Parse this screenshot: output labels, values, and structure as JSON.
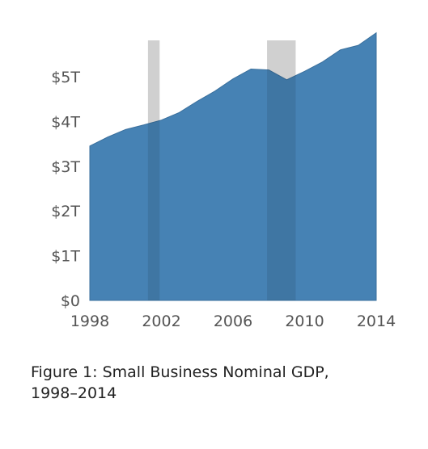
{
  "chart_data": {
    "type": "area",
    "x": [
      1998,
      1999,
      2000,
      2001,
      2002,
      2003,
      2004,
      2005,
      2006,
      2007,
      2008,
      2009,
      2010,
      2011,
      2012,
      2013,
      2014
    ],
    "series": [
      {
        "values": [
          3.45,
          3.65,
          3.82,
          3.92,
          4.03,
          4.2,
          4.45,
          4.68,
          4.95,
          5.17,
          5.15,
          4.93,
          5.12,
          5.33,
          5.6,
          5.7,
          5.98
        ],
        "color": "#4682b4"
      }
    ],
    "recession_bands": [
      {
        "start": 2001.25,
        "end": 2001.9
      },
      {
        "start": 2007.9,
        "end": 2009.5
      }
    ],
    "recession_band_color": "#e5e5e5",
    "xlim": [
      1998,
      2014
    ],
    "ylim": [
      0,
      6.1
    ],
    "x_ticks": [
      {
        "value": 1998,
        "label": "1998"
      },
      {
        "value": 2002,
        "label": "2002"
      },
      {
        "value": 2006,
        "label": "2006"
      },
      {
        "value": 2010,
        "label": "2010"
      },
      {
        "value": 2014,
        "label": "2014"
      }
    ],
    "y_ticks": [
      {
        "value": 0,
        "label": "$0"
      },
      {
        "value": 1,
        "label": "$1T"
      },
      {
        "value": 2,
        "label": "$2T"
      },
      {
        "value": 3,
        "label": "$3T"
      },
      {
        "value": 4,
        "label": "$4T"
      },
      {
        "value": 5,
        "label": "$5T"
      }
    ],
    "grid": false,
    "legend": "none",
    "title": "",
    "xlabel": "",
    "ylabel": ""
  },
  "caption": {
    "line1": "Figure 1: Small Business Nominal GDP,",
    "line2": "1998–2014"
  }
}
